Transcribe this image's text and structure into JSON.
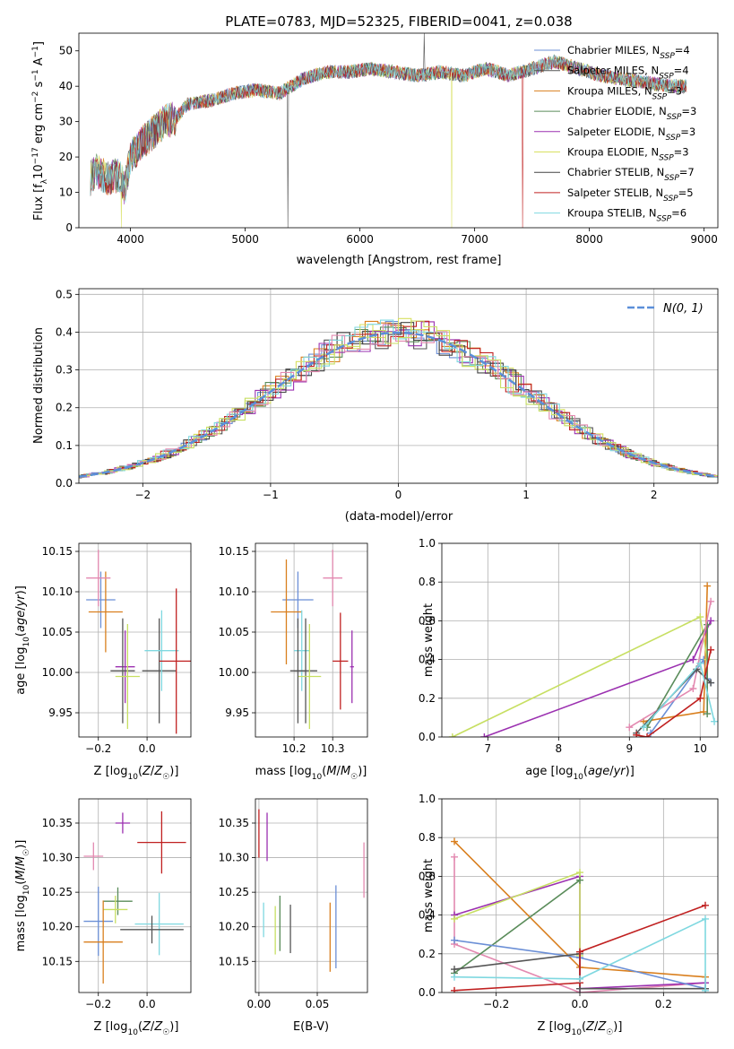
{
  "figure": {
    "title": "PLATE=0783, MJD=52325, FIBERID=0041, z=0.038"
  },
  "chart_data": [
    {
      "id": "spectrum",
      "type": "line",
      "xlabel": "wavelength [Angstrom, rest frame]",
      "ylabel": "Flux [fλ10⁻¹⁷ erg cm⁻² s⁻¹ A⁻¹]",
      "xlim": [
        3550,
        9120
      ],
      "ylim": [
        0,
        55
      ],
      "xticks": [
        4000,
        5000,
        6000,
        7000,
        8000,
        9000
      ],
      "yticks": [
        0,
        10,
        20,
        30,
        40,
        50
      ],
      "grid": false,
      "legend_position": "top-right",
      "x_range": [
        3650,
        8850
      ],
      "continuum": [
        [
          3650,
          14
        ],
        [
          3700,
          16
        ],
        [
          3800,
          14
        ],
        [
          3900,
          15
        ],
        [
          3950,
          11
        ],
        [
          4000,
          20
        ],
        [
          4100,
          24
        ],
        [
          4200,
          27
        ],
        [
          4300,
          30
        ],
        [
          4400,
          31
        ],
        [
          4500,
          35
        ],
        [
          4700,
          36
        ],
        [
          4900,
          38
        ],
        [
          5100,
          39
        ],
        [
          5300,
          38
        ],
        [
          5500,
          42
        ],
        [
          5700,
          44
        ],
        [
          5900,
          44
        ],
        [
          6100,
          45
        ],
        [
          6300,
          44
        ],
        [
          6500,
          43
        ],
        [
          6700,
          44
        ],
        [
          6900,
          43
        ],
        [
          7100,
          45
        ],
        [
          7300,
          43
        ],
        [
          7500,
          45
        ],
        [
          7700,
          47
        ],
        [
          7900,
          45
        ],
        [
          8100,
          43
        ],
        [
          8300,
          42
        ],
        [
          8500,
          41
        ],
        [
          8700,
          40
        ],
        [
          8850,
          40
        ]
      ],
      "series": [
        {
          "name": "Chabrier MILES, N_SSP=4",
          "color": "#6b8fd6",
          "spikes": []
        },
        {
          "name": "Salpeter MILES, N_SSP=4",
          "color": "#555555",
          "spikes": []
        },
        {
          "name": "Kroupa MILES, N_SSP=3",
          "color": "#d97f1e",
          "spikes": []
        },
        {
          "name": "Chabrier ELODIE, N_SSP=3",
          "color": "#5a8c5a",
          "spikes": []
        },
        {
          "name": "Salpeter ELODIE, N_SSP=3",
          "color": "#9b30b0",
          "spikes": []
        },
        {
          "name": "Kroupa ELODIE, N_SSP=3",
          "color": "#d8e060",
          "spikes": [
            [
              3920,
              0
            ],
            [
              6800,
              0
            ]
          ]
        },
        {
          "name": "Chabrier STELIB, N_SSP=7",
          "color": "#444444",
          "spikes": [
            [
              5370,
              0
            ],
            [
              6560,
              55
            ]
          ]
        },
        {
          "name": "Salpeter STELIB, N_SSP=5",
          "color": "#c02020",
          "spikes": [
            [
              7420,
              0
            ]
          ]
        },
        {
          "name": "Kroupa STELIB, N_SSP=6",
          "color": "#7fd8e0",
          "spikes": []
        }
      ],
      "legend": [
        {
          "base": "Chabrier MILES, N",
          "sub": "SSP",
          "tail": "=4"
        },
        {
          "base": "Salpeter MILES, N",
          "sub": "SSP",
          "tail": "=4"
        },
        {
          "base": "Kroupa MILES, N",
          "sub": "SSP",
          "tail": "=3"
        },
        {
          "base": "Chabrier ELODIE, N",
          "sub": "SSP",
          "tail": "=3"
        },
        {
          "base": "Salpeter ELODIE, N",
          "sub": "SSP",
          "tail": "=3"
        },
        {
          "base": "Kroupa ELODIE, N",
          "sub": "SSP",
          "tail": "=3"
        },
        {
          "base": "Chabrier STELIB, N",
          "sub": "SSP",
          "tail": "=7"
        },
        {
          "base": "Salpeter STELIB, N",
          "sub": "SSP",
          "tail": "=5"
        },
        {
          "base": "Kroupa STELIB, N",
          "sub": "SSP",
          "tail": "=6"
        }
      ]
    },
    {
      "id": "residuals",
      "type": "line",
      "xlabel": "(data-model)/error",
      "ylabel": "Normed distribution",
      "xlim": [
        -2.5,
        2.5
      ],
      "ylim": [
        0,
        0.515
      ],
      "xticks": [
        -2,
        -1,
        0,
        1,
        2
      ],
      "yticks": [
        0.0,
        0.1,
        0.2,
        0.3,
        0.4,
        0.5
      ],
      "grid": true,
      "legend_position": "top-right",
      "legend": "N(0, 1)",
      "gaussian_color": "#5b8fd9"
    },
    {
      "id": "age_vs_Z",
      "type": "scatter",
      "xlabel": "Z [log10(Z/Z☉)]",
      "ylabel": "age [log10(age/yr)]",
      "xlim": [
        -0.28,
        0.18
      ],
      "ylim": [
        9.92,
        10.16
      ],
      "xticks": [
        -0.2,
        0.0
      ],
      "yticks": [
        9.95,
        10.0,
        10.05,
        10.1,
        10.15
      ],
      "grid": true,
      "points": [
        {
          "x": -0.19,
          "y": 10.09,
          "xerr": 0.06,
          "yerr": 0.035,
          "color": "#6b8fd6"
        },
        {
          "x": -0.17,
          "y": 10.075,
          "xerr": 0.07,
          "yerr": 0.05,
          "color": "#d97f1e"
        },
        {
          "x": -0.2,
          "y": 10.117,
          "xerr": 0.05,
          "yerr": 0.035,
          "color": "#e389b0"
        },
        {
          "x": -0.09,
          "y": 10.007,
          "xerr": 0.04,
          "yerr": 0.045,
          "color": "#9b30b0"
        },
        {
          "x": -0.1,
          "y": 10.002,
          "xerr": 0.05,
          "yerr": 0.065,
          "color": "#555555"
        },
        {
          "x": -0.08,
          "y": 9.995,
          "xerr": 0.05,
          "yerr": 0.065,
          "color": "#c7df62"
        },
        {
          "x": 0.05,
          "y": 10.002,
          "xerr": 0.07,
          "yerr": 0.065,
          "color": "#555555"
        },
        {
          "x": 0.06,
          "y": 10.027,
          "xerr": 0.07,
          "yerr": 0.05,
          "color": "#7fd8e0"
        },
        {
          "x": 0.12,
          "y": 10.014,
          "xerr": 0.07,
          "yerr": 0.09,
          "color": "#c02020"
        }
      ]
    },
    {
      "id": "age_vs_mass",
      "type": "scatter",
      "xlabel": "mass [log10(M/M☉)]",
      "ylabel": "",
      "xlim": [
        10.1,
        10.39
      ],
      "ylim": [
        9.92,
        10.16
      ],
      "xticks": [
        10.2,
        10.3
      ],
      "yticks": [
        9.95,
        10.0,
        10.05,
        10.1,
        10.15
      ],
      "grid": true,
      "points": [
        {
          "x": 10.21,
          "y": 10.09,
          "xerr": 0.04,
          "yerr": 0.035,
          "color": "#6b8fd6"
        },
        {
          "x": 10.18,
          "y": 10.075,
          "xerr": 0.04,
          "yerr": 0.065,
          "color": "#d97f1e"
        },
        {
          "x": 10.3,
          "y": 10.117,
          "xerr": 0.025,
          "yerr": 0.035,
          "color": "#e389b0"
        },
        {
          "x": 10.22,
          "y": 10.027,
          "xerr": 0.02,
          "yerr": 0.05,
          "color": "#7fd8e0"
        },
        {
          "x": 10.23,
          "y": 10.002,
          "xerr": 0.03,
          "yerr": 0.065,
          "color": "#555555"
        },
        {
          "x": 10.24,
          "y": 9.995,
          "xerr": 0.03,
          "yerr": 0.065,
          "color": "#c7df62"
        },
        {
          "x": 10.21,
          "y": 10.002,
          "xerr": 0.02,
          "yerr": 0.065,
          "color": "#555555"
        },
        {
          "x": 10.35,
          "y": 10.007,
          "xerr": 0.005,
          "yerr": 0.045,
          "color": "#9b30b0"
        },
        {
          "x": 10.32,
          "y": 10.014,
          "xerr": 0.02,
          "yerr": 0.06,
          "color": "#c02020"
        }
      ]
    },
    {
      "id": "weight_vs_age",
      "type": "line",
      "xlabel": "age  [log10(age/yr)]",
      "ylabel": "mass weight",
      "xlim": [
        6.35,
        10.25
      ],
      "ylim": [
        0,
        1
      ],
      "xticks": [
        7,
        8,
        9,
        10
      ],
      "yticks": [
        0.0,
        0.2,
        0.4,
        0.6,
        0.8,
        1.0
      ],
      "grid": true,
      "series": [
        {
          "color": "#6b8fd6",
          "points": [
            [
              9.3,
              0.02
            ],
            [
              10.05,
              0.4
            ],
            [
              10.1,
              0.3
            ],
            [
              10.15,
              0.28
            ]
          ]
        },
        {
          "color": "#d97f1e",
          "points": [
            [
              9.2,
              0.08
            ],
            [
              10.05,
              0.13
            ],
            [
              10.1,
              0.78
            ]
          ]
        },
        {
          "color": "#9b30b0",
          "points": [
            [
              6.95,
              0.0
            ],
            [
              9.9,
              0.4
            ],
            [
              10.15,
              0.6
            ]
          ]
        },
        {
          "color": "#c7df62",
          "points": [
            [
              6.5,
              0.0
            ],
            [
              10.0,
              0.62
            ],
            [
              10.1,
              0.4
            ]
          ]
        },
        {
          "color": "#5a8c5a",
          "points": [
            [
              9.25,
              0.05
            ],
            [
              10.1,
              0.58
            ],
            [
              10.1,
              0.12
            ]
          ]
        },
        {
          "color": "#e389b0",
          "points": [
            [
              9.0,
              0.05
            ],
            [
              9.9,
              0.25
            ],
            [
              10.15,
              0.7
            ]
          ]
        },
        {
          "color": "#555555",
          "points": [
            [
              9.1,
              0.02
            ],
            [
              9.95,
              0.35
            ],
            [
              10.15,
              0.28
            ]
          ]
        },
        {
          "color": "#c02020",
          "points": [
            [
              9.1,
              0.01
            ],
            [
              9.25,
              0.0
            ],
            [
              10.0,
              0.2
            ],
            [
              10.15,
              0.45
            ]
          ]
        },
        {
          "color": "#7fd8e0",
          "points": [
            [
              9.2,
              0.05
            ],
            [
              10.0,
              0.38
            ],
            [
              10.2,
              0.08
            ]
          ]
        }
      ]
    },
    {
      "id": "mass_vs_Z",
      "type": "scatter",
      "xlabel": "Z [log10(Z/Z☉)]",
      "ylabel": "mass [log10(M/M☉)]",
      "xlim": [
        -0.28,
        0.18
      ],
      "ylim": [
        10.105,
        10.385
      ],
      "xticks": [
        -0.2,
        0.0
      ],
      "yticks": [
        10.15,
        10.2,
        10.25,
        10.3,
        10.35
      ],
      "grid": true,
      "points": [
        {
          "x": -0.1,
          "y": 10.35,
          "xerr": 0.03,
          "yerr": 0.015,
          "color": "#9b30b0"
        },
        {
          "x": 0.06,
          "y": 10.322,
          "xerr": 0.1,
          "yerr": 0.045,
          "color": "#c02020"
        },
        {
          "x": -0.22,
          "y": 10.302,
          "xerr": 0.04,
          "yerr": 0.02,
          "color": "#e389b0"
        },
        {
          "x": -0.12,
          "y": 10.237,
          "xerr": 0.06,
          "yerr": 0.02,
          "color": "#5a8c5a"
        },
        {
          "x": -0.13,
          "y": 10.225,
          "xerr": 0.05,
          "yerr": 0.02,
          "color": "#c7df62"
        },
        {
          "x": -0.2,
          "y": 10.208,
          "xerr": 0.06,
          "yerr": 0.05,
          "color": "#6b8fd6"
        },
        {
          "x": 0.05,
          "y": 10.204,
          "xerr": 0.1,
          "yerr": 0.045,
          "color": "#7fd8e0"
        },
        {
          "x": 0.02,
          "y": 10.196,
          "xerr": 0.13,
          "yerr": 0.02,
          "color": "#555555"
        },
        {
          "x": -0.18,
          "y": 10.178,
          "xerr": 0.08,
          "yerr": 0.06,
          "color": "#d97f1e"
        }
      ]
    },
    {
      "id": "mass_vs_EBV",
      "type": "scatter",
      "xlabel": "E(B-V)",
      "ylabel": "",
      "xlim": [
        -0.003,
        0.093
      ],
      "ylim": [
        10.105,
        10.385
      ],
      "xticks": [
        0.0,
        0.05
      ],
      "yticks": [
        10.15,
        10.2,
        10.25,
        10.3,
        10.35
      ],
      "grid": true,
      "points": [
        {
          "x": 0.0,
          "y": 10.335,
          "xerr": 0,
          "yerr": 0.035,
          "color": "#c02020"
        },
        {
          "x": 0.007,
          "y": 10.33,
          "xerr": 0,
          "yerr": 0.035,
          "color": "#9b30b0"
        },
        {
          "x": 0.004,
          "y": 10.21,
          "xerr": 0,
          "yerr": 0.025,
          "color": "#7fd8e0"
        },
        {
          "x": 0.014,
          "y": 10.195,
          "xerr": 0,
          "yerr": 0.035,
          "color": "#c7df62"
        },
        {
          "x": 0.018,
          "y": 10.205,
          "xerr": 0,
          "yerr": 0.04,
          "color": "#5a8c5a"
        },
        {
          "x": 0.027,
          "y": 10.197,
          "xerr": 0,
          "yerr": 0.035,
          "color": "#555555"
        },
        {
          "x": 0.061,
          "y": 10.185,
          "xerr": 0,
          "yerr": 0.05,
          "color": "#d97f1e"
        },
        {
          "x": 0.066,
          "y": 10.2,
          "xerr": 0,
          "yerr": 0.06,
          "color": "#6b8fd6"
        },
        {
          "x": 0.09,
          "y": 10.282,
          "xerr": 0,
          "yerr": 0.04,
          "color": "#e389b0"
        }
      ]
    },
    {
      "id": "weight_vs_Z",
      "type": "line",
      "xlabel": "Z [log10(Z/Z☉)]",
      "ylabel": "mass weight",
      "xlim": [
        -0.33,
        0.33
      ],
      "ylim": [
        0,
        1
      ],
      "xticks": [
        -0.2,
        0.0,
        0.2
      ],
      "yticks": [
        0.0,
        0.2,
        0.4,
        0.6,
        0.8,
        1.0
      ],
      "grid": true,
      "series": [
        {
          "color": "#d97f1e",
          "points": [
            [
              -0.3,
              0.78
            ],
            [
              0.0,
              0.13
            ],
            [
              0.3,
              0.08
            ]
          ]
        },
        {
          "color": "#e389b0",
          "points": [
            [
              -0.3,
              0.7
            ],
            [
              -0.3,
              0.25
            ],
            [
              0.0,
              0.0
            ],
            [
              0.3,
              0.05
            ]
          ]
        },
        {
          "color": "#9b30b0",
          "points": [
            [
              -0.3,
              0.4
            ],
            [
              0.0,
              0.6
            ],
            [
              0.0,
              0.02
            ],
            [
              0.3,
              0.05
            ]
          ]
        },
        {
          "color": "#c7df62",
          "points": [
            [
              -0.3,
              0.38
            ],
            [
              0.0,
              0.62
            ],
            [
              0.0,
              0.19
            ]
          ]
        },
        {
          "color": "#5a8c5a",
          "points": [
            [
              -0.3,
              0.1
            ],
            [
              0.0,
              0.58
            ]
          ]
        },
        {
          "color": "#6b8fd6",
          "points": [
            [
              -0.3,
              0.27
            ],
            [
              0.0,
              0.18
            ],
            [
              0.3,
              0.02
            ]
          ]
        },
        {
          "color": "#555555",
          "points": [
            [
              -0.3,
              0.12
            ],
            [
              0.0,
              0.2
            ],
            [
              0.0,
              0.02
            ],
            [
              0.3,
              0.02
            ]
          ]
        },
        {
          "color": "#c02020",
          "points": [
            [
              -0.3,
              0.01
            ],
            [
              0.0,
              0.05
            ],
            [
              0.0,
              0.21
            ],
            [
              0.3,
              0.45
            ]
          ]
        },
        {
          "color": "#7fd8e0",
          "points": [
            [
              -0.3,
              0.08
            ],
            [
              0.0,
              0.07
            ],
            [
              0.3,
              0.38
            ],
            [
              0.3,
              0.01
            ]
          ]
        }
      ]
    }
  ]
}
